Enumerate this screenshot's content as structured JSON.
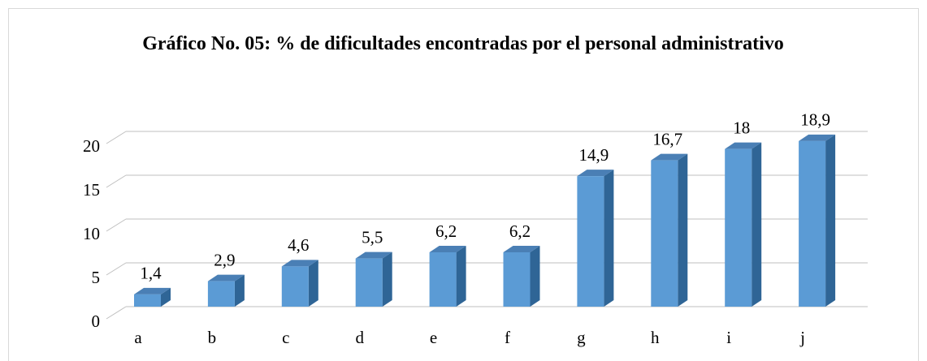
{
  "chart_data": {
    "type": "bar",
    "title": "Gráfico No. 05: % de dificultades encontradas por el personal administrativo",
    "categories": [
      "a",
      "b",
      "c",
      "d",
      "e",
      "f",
      "g",
      "h",
      "i",
      "j"
    ],
    "values": [
      1.4,
      2.9,
      4.6,
      5.5,
      6.2,
      6.2,
      14.9,
      16.7,
      18,
      18.9
    ],
    "value_labels": [
      "1,4",
      "2,9",
      "4,6",
      "5,5",
      "6,2",
      "6,2",
      "14,9",
      "16,7",
      "18",
      "18,9"
    ],
    "color": "#5b9bd5",
    "ylim": [
      0,
      20
    ],
    "yticks": [
      0,
      5,
      10,
      15,
      20
    ],
    "grid": true
  }
}
